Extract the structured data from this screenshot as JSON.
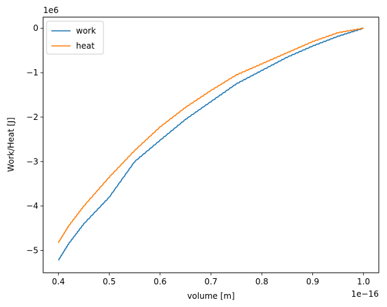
{
  "chart_data": {
    "type": "line",
    "title": "",
    "xlabel": "volume [m]",
    "ylabel": "Work/Heat [J]",
    "x_offset_label": "1e−16",
    "y_offset_label": "1e6",
    "xlim": [
      0.37,
      1.03
    ],
    "ylim": [
      -5.5,
      0.25
    ],
    "x_ticks": [
      0.4,
      0.5,
      0.6,
      0.7,
      0.8,
      0.9,
      1.0
    ],
    "x_tick_labels": [
      "0.4",
      "0.5",
      "0.6",
      "0.7",
      "0.8",
      "0.9",
      "1.0"
    ],
    "y_ticks": [
      0,
      -1,
      -2,
      -3,
      -4,
      -5
    ],
    "y_tick_labels": [
      "0",
      "−1",
      "−2",
      "−3",
      "−4",
      "−5"
    ],
    "grid": false,
    "legend_position": "top-left",
    "series": [
      {
        "name": "work",
        "color": "#1f77b4",
        "x": [
          0.4,
          0.42,
          0.45,
          0.5,
          0.55,
          0.6,
          0.65,
          0.7,
          0.75,
          0.8,
          0.85,
          0.9,
          0.95,
          1.0
        ],
        "y": [
          -5.22,
          -4.85,
          -4.4,
          -3.8,
          -3.0,
          -2.52,
          -2.05,
          -1.65,
          -1.25,
          -0.95,
          -0.65,
          -0.4,
          -0.18,
          0.0
        ]
      },
      {
        "name": "heat",
        "color": "#ff7f0e",
        "x": [
          0.4,
          0.42,
          0.45,
          0.5,
          0.55,
          0.6,
          0.65,
          0.7,
          0.75,
          0.8,
          0.85,
          0.9,
          0.95,
          1.0
        ],
        "y": [
          -4.82,
          -4.45,
          -4.0,
          -3.35,
          -2.75,
          -2.22,
          -1.78,
          -1.4,
          -1.05,
          -0.8,
          -0.55,
          -0.3,
          -0.1,
          0.0
        ]
      }
    ]
  }
}
